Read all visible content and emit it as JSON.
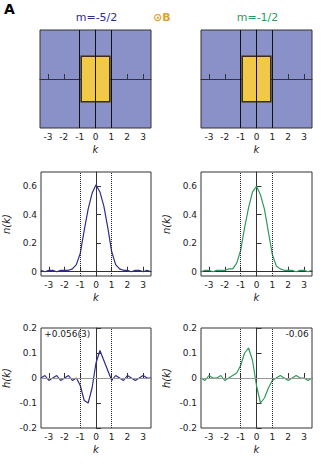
{
  "panel_label": "A",
  "field_symbol": "⊙B",
  "field_color": "#e0a030",
  "chart_data": [
    {
      "type": "image",
      "title": "m=-5/2",
      "color": "#2e2e8a",
      "x_label": "k",
      "tick_labels": "x",
      "xlim": [
        -3.5,
        3.5
      ],
      "xticks": [
        -3,
        -2,
        -1,
        0,
        1,
        2,
        3
      ],
      "ylim": [
        -1.5,
        1.5
      ],
      "region": {
        "x": [
          -0.9,
          0.9
        ],
        "y": [
          -0.7,
          0.7
        ]
      },
      "vlines": [
        -1,
        0,
        1
      ]
    },
    {
      "type": "image",
      "title": "m=-1/2",
      "color": "#2e9a5a",
      "x_label": "k",
      "tick_labels": "x",
      "xlim": [
        -3.5,
        3.5
      ],
      "xticks": [
        -3,
        -2,
        -1,
        0,
        1,
        2,
        3
      ],
      "ylim": [
        -1.5,
        1.5
      ],
      "region": {
        "x": [
          -0.9,
          0.9
        ],
        "y": [
          -0.7,
          0.7
        ]
      },
      "vlines": [
        -1,
        0,
        1
      ]
    },
    {
      "type": "line",
      "color": "#2e2e8a",
      "x_label": "k",
      "y_label": "n(k)",
      "xlim": [
        -3.5,
        3.5
      ],
      "xticks": [
        -3,
        -2,
        -1,
        0,
        1,
        2,
        3
      ],
      "ylim": [
        -0.03,
        0.7
      ],
      "yticks": [
        0,
        0.2,
        0.4,
        0.6
      ],
      "vlines": [
        -1,
        1
      ],
      "x": [
        -3.5,
        -3.25,
        -3,
        -2.75,
        -2.5,
        -2.25,
        -2,
        -1.75,
        -1.5,
        -1.25,
        -1,
        -0.75,
        -0.5,
        -0.25,
        0,
        0.25,
        0.5,
        0.75,
        1,
        1.25,
        1.5,
        1.75,
        2,
        2.25,
        2.5,
        2.75,
        3,
        3.25,
        3.5
      ],
      "values": [
        0.01,
        0.0,
        0.01,
        0.01,
        0.0,
        0.01,
        0.01,
        0.01,
        0.02,
        0.05,
        0.13,
        0.29,
        0.44,
        0.55,
        0.61,
        0.56,
        0.46,
        0.31,
        0.14,
        0.05,
        0.02,
        0.01,
        0.01,
        0.0,
        0.01,
        0.01,
        0.0,
        0.01,
        0.0
      ]
    },
    {
      "type": "line",
      "color": "#2e9a5a",
      "x_label": "k",
      "y_label": "n(k)",
      "xlim": [
        -3.5,
        3.5
      ],
      "xticks": [
        -3,
        -2,
        -1,
        0,
        1,
        2,
        3
      ],
      "ylim": [
        -0.03,
        0.7
      ],
      "yticks": [
        0,
        0.2,
        0.4,
        0.6
      ],
      "vlines": [
        -1,
        1
      ],
      "x": [
        -3.5,
        -3.25,
        -3,
        -2.75,
        -2.5,
        -2.25,
        -2,
        -1.75,
        -1.5,
        -1.25,
        -1,
        -0.75,
        -0.5,
        -0.25,
        0,
        0.25,
        0.5,
        0.75,
        1,
        1.25,
        1.5,
        1.75,
        2,
        2.25,
        2.5,
        2.75,
        3,
        3.25,
        3.5
      ],
      "values": [
        0.0,
        0.01,
        0.01,
        0.0,
        0.01,
        0.01,
        0.01,
        0.02,
        0.02,
        0.06,
        0.15,
        0.31,
        0.45,
        0.56,
        0.6,
        0.54,
        0.44,
        0.28,
        0.12,
        0.04,
        0.02,
        0.01,
        0.01,
        0.01,
        0.0,
        0.01,
        0.01,
        0.0,
        0.01
      ]
    },
    {
      "type": "line",
      "color": "#2e2e8a",
      "x_label": "k",
      "y_label": "h(k)",
      "xlim": [
        -3.5,
        3.5
      ],
      "xticks": [
        -3,
        -2,
        -1,
        0,
        1,
        2,
        3
      ],
      "ylim": [
        -0.2,
        0.2
      ],
      "yticks": [
        -0.2,
        -0.1,
        0,
        0.1,
        0.2
      ],
      "vlines": [
        -1,
        1
      ],
      "hline": 0,
      "annotation": {
        "text": "+0.056(3)",
        "x": -3.3,
        "y": 0.195
      },
      "x": [
        -3.5,
        -3.25,
        -3,
        -2.75,
        -2.5,
        -2.25,
        -2,
        -1.75,
        -1.5,
        -1.25,
        -1,
        -0.75,
        -0.5,
        -0.25,
        0,
        0.25,
        0.5,
        0.75,
        1,
        1.25,
        1.5,
        1.75,
        2,
        2.25,
        2.5,
        2.75,
        3,
        3.25,
        3.5
      ],
      "values": [
        0.0,
        0.01,
        -0.01,
        0.0,
        0.01,
        -0.01,
        0.0,
        0.01,
        -0.01,
        0.0,
        -0.03,
        -0.09,
        -0.1,
        -0.04,
        0.06,
        0.11,
        0.07,
        0.03,
        -0.01,
        0.01,
        0.0,
        -0.01,
        0.01,
        0.0,
        -0.01,
        0.0,
        0.01,
        0.0,
        0.0
      ]
    },
    {
      "type": "line",
      "color": "#2e9a5a",
      "x_label": "k",
      "y_label": "h(k)",
      "xlim": [
        -3.5,
        3.5
      ],
      "xticks": [
        -3,
        -2,
        -1,
        0,
        1,
        2,
        3
      ],
      "ylim": [
        -0.2,
        0.2
      ],
      "yticks": [
        -0.2,
        -0.1,
        0,
        0.1,
        0.2
      ],
      "vlines": [
        -1,
        1
      ],
      "hline": 0,
      "annotation": {
        "text": "-0.06",
        "x": 3.3,
        "y": 0.195
      },
      "x": [
        -3.5,
        -3.25,
        -3,
        -2.75,
        -2.5,
        -2.25,
        -2,
        -1.75,
        -1.5,
        -1.25,
        -1,
        -0.75,
        -0.5,
        -0.25,
        0,
        0.25,
        0.5,
        0.75,
        1,
        1.25,
        1.5,
        1.75,
        2,
        2.25,
        2.5,
        2.75,
        3,
        3.25,
        3.5
      ],
      "values": [
        0.0,
        -0.01,
        0.01,
        0.0,
        0.0,
        0.01,
        -0.01,
        0.0,
        0.01,
        0.02,
        0.05,
        0.1,
        0.12,
        0.07,
        -0.03,
        -0.1,
        -0.08,
        -0.04,
        -0.01,
        0.0,
        0.01,
        0.0,
        -0.01,
        0.0,
        0.01,
        0.0,
        0.0,
        -0.01,
        0.0
      ]
    }
  ]
}
